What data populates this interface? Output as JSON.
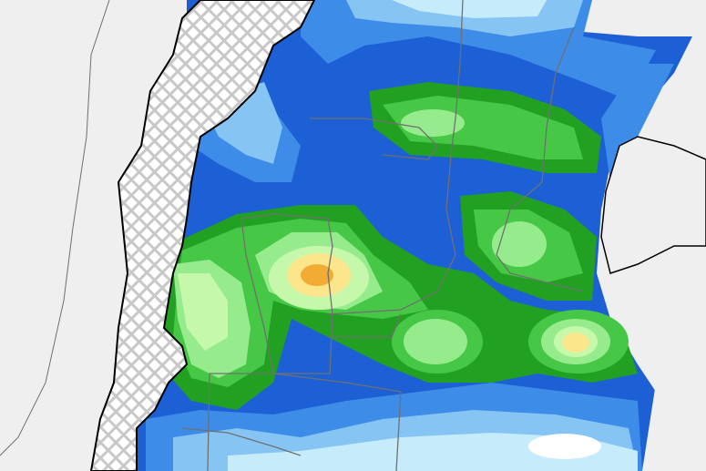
{
  "map": {
    "type": "precipitation-field",
    "colors": {
      "background": "#efefef",
      "masked_terrain": "#d4d4d4",
      "deep_blue": "#1d5fd4",
      "blue": "#3c8ce8",
      "light_blue": "#86c4f4",
      "pale_blue": "#c6ecfc",
      "dark_green": "#22a022",
      "green": "#46c846",
      "light_green": "#96ec8c",
      "pale_green": "#c6f8ac",
      "yellow": "#fbe68c",
      "orange": "#f2ac34",
      "border": "#707070",
      "coast": "#000000"
    }
  }
}
